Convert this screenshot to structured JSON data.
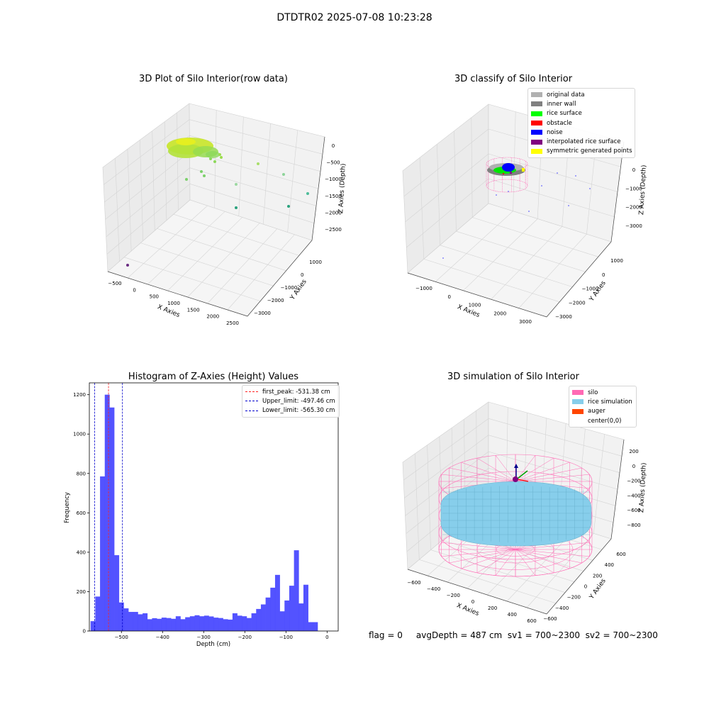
{
  "suptitle": "DTDTR02 2025-07-08 10:23:28",
  "status_text": "flag = 0     avgDepth = 487 cm  sv1 = 700~2300  sv2 = 700~2300",
  "chart_data": [
    {
      "type": "scatter",
      "subtype": "3d",
      "title": "3D Plot of Silo Interior(row data)",
      "xlabel": "X Axies",
      "ylabel": "Y Axies",
      "zlabel": "Z Axies (Depth)",
      "xticks": [
        "−500",
        "0",
        "500",
        "1000",
        "1500",
        "2000",
        "2500"
      ],
      "yticks": [
        "1000",
        "0",
        "−1000",
        "−2000",
        "−3000"
      ],
      "zticks": [
        "0",
        "−500",
        "−1000",
        "−1500",
        "−2000",
        "−2500"
      ],
      "colors": {
        "dense_cloud": "#c8e628",
        "mid_points": "#7bd06a",
        "far_points": "#2aa27d",
        "lowest_point": "#6a2c82"
      },
      "note_series": "dense point cloud of rice surface near -500 cm depth plus scattered outlier points down to about -2500 cm"
    },
    {
      "type": "scatter",
      "subtype": "3d",
      "title": "3D classify of Silo Interior",
      "xlabel": "X Axies",
      "ylabel": "Y Axies",
      "zlabel": "Z Axies (Depth)",
      "xticks": [
        "−1000",
        "0",
        "1000",
        "2000",
        "3000"
      ],
      "yticks": [
        "1000",
        "0",
        "−1000",
        "−2000",
        "−3000"
      ],
      "zticks": [
        "0",
        "−1000",
        "−2000",
        "−3000"
      ],
      "legend": [
        {
          "label": "original data",
          "color": "#b0b0b0"
        },
        {
          "label": "inner wall",
          "color": "#808080"
        },
        {
          "label": "rice surface",
          "color": "#00ff00"
        },
        {
          "label": "obstacle",
          "color": "#ff0000"
        },
        {
          "label": "noise",
          "color": "#0000ff"
        },
        {
          "label": "interpolated rice surface",
          "color": "#800080"
        },
        {
          "label": "symmetric generated points",
          "color": "#ffff00"
        }
      ],
      "legend_placement": "upper-right"
    },
    {
      "type": "bar",
      "subtype": "histogram",
      "title": "Histogram of Z-Axies (Height) Values",
      "xlabel": "Depth (cm)",
      "ylabel": "Frequency",
      "xlim": [
        -578,
        27
      ],
      "ylim": [
        0,
        1260
      ],
      "xticks": [
        -500,
        -400,
        -300,
        -200,
        -100,
        0
      ],
      "xtick_labels": [
        "−500",
        "−400",
        "−300",
        "−200",
        "−100",
        "0"
      ],
      "yticks": [
        0,
        200,
        400,
        600,
        800,
        1000,
        1200
      ],
      "bin_start": -575,
      "bin_width": 11.5,
      "values": [
        50,
        175,
        785,
        1200,
        1135,
        385,
        145,
        115,
        97,
        97,
        85,
        90,
        60,
        65,
        62,
        68,
        66,
        62,
        75,
        60,
        70,
        75,
        80,
        75,
        78,
        74,
        68,
        66,
        60,
        58,
        90,
        78,
        75,
        66,
        90,
        112,
        135,
        170,
        220,
        285,
        100,
        155,
        230,
        410,
        140,
        235,
        45,
        45
      ],
      "bar_color": "#4a4aff",
      "vlines": [
        {
          "label": "first_peak: -531.38 cm",
          "x": -531.38,
          "color": "#ff2020"
        },
        {
          "label": "Upper_limit: -497.46 cm",
          "x": -497.46,
          "color": "#0000cc"
        },
        {
          "label": "Lower_limit: -565.30 cm",
          "x": -565.3,
          "color": "#0000cc"
        }
      ],
      "legend_placement": "upper-right"
    },
    {
      "type": "scatter",
      "subtype": "3d-surface",
      "title": "3D simulation of Silo Interior",
      "xlabel": "X Axies",
      "ylabel": "Y Axies",
      "zlabel": "Z Axies (Depth)",
      "xticks": [
        "−600",
        "−400",
        "−200",
        "0",
        "200",
        "400",
        "600"
      ],
      "yticks": [
        "600",
        "400",
        "200",
        "0",
        "−200",
        "−400",
        "−600"
      ],
      "zticks": [
        "200",
        "0",
        "−200",
        "−400",
        "−600",
        "−800"
      ],
      "legend": [
        {
          "label": "silo",
          "color": "#ff69b4"
        },
        {
          "label": "rice simulation",
          "color": "#87ceeb"
        },
        {
          "label": "auger",
          "color": "#ff4500"
        },
        {
          "label": "center(0,0)",
          "color": "#ffffff"
        }
      ],
      "legend_placement": "upper-right"
    }
  ]
}
